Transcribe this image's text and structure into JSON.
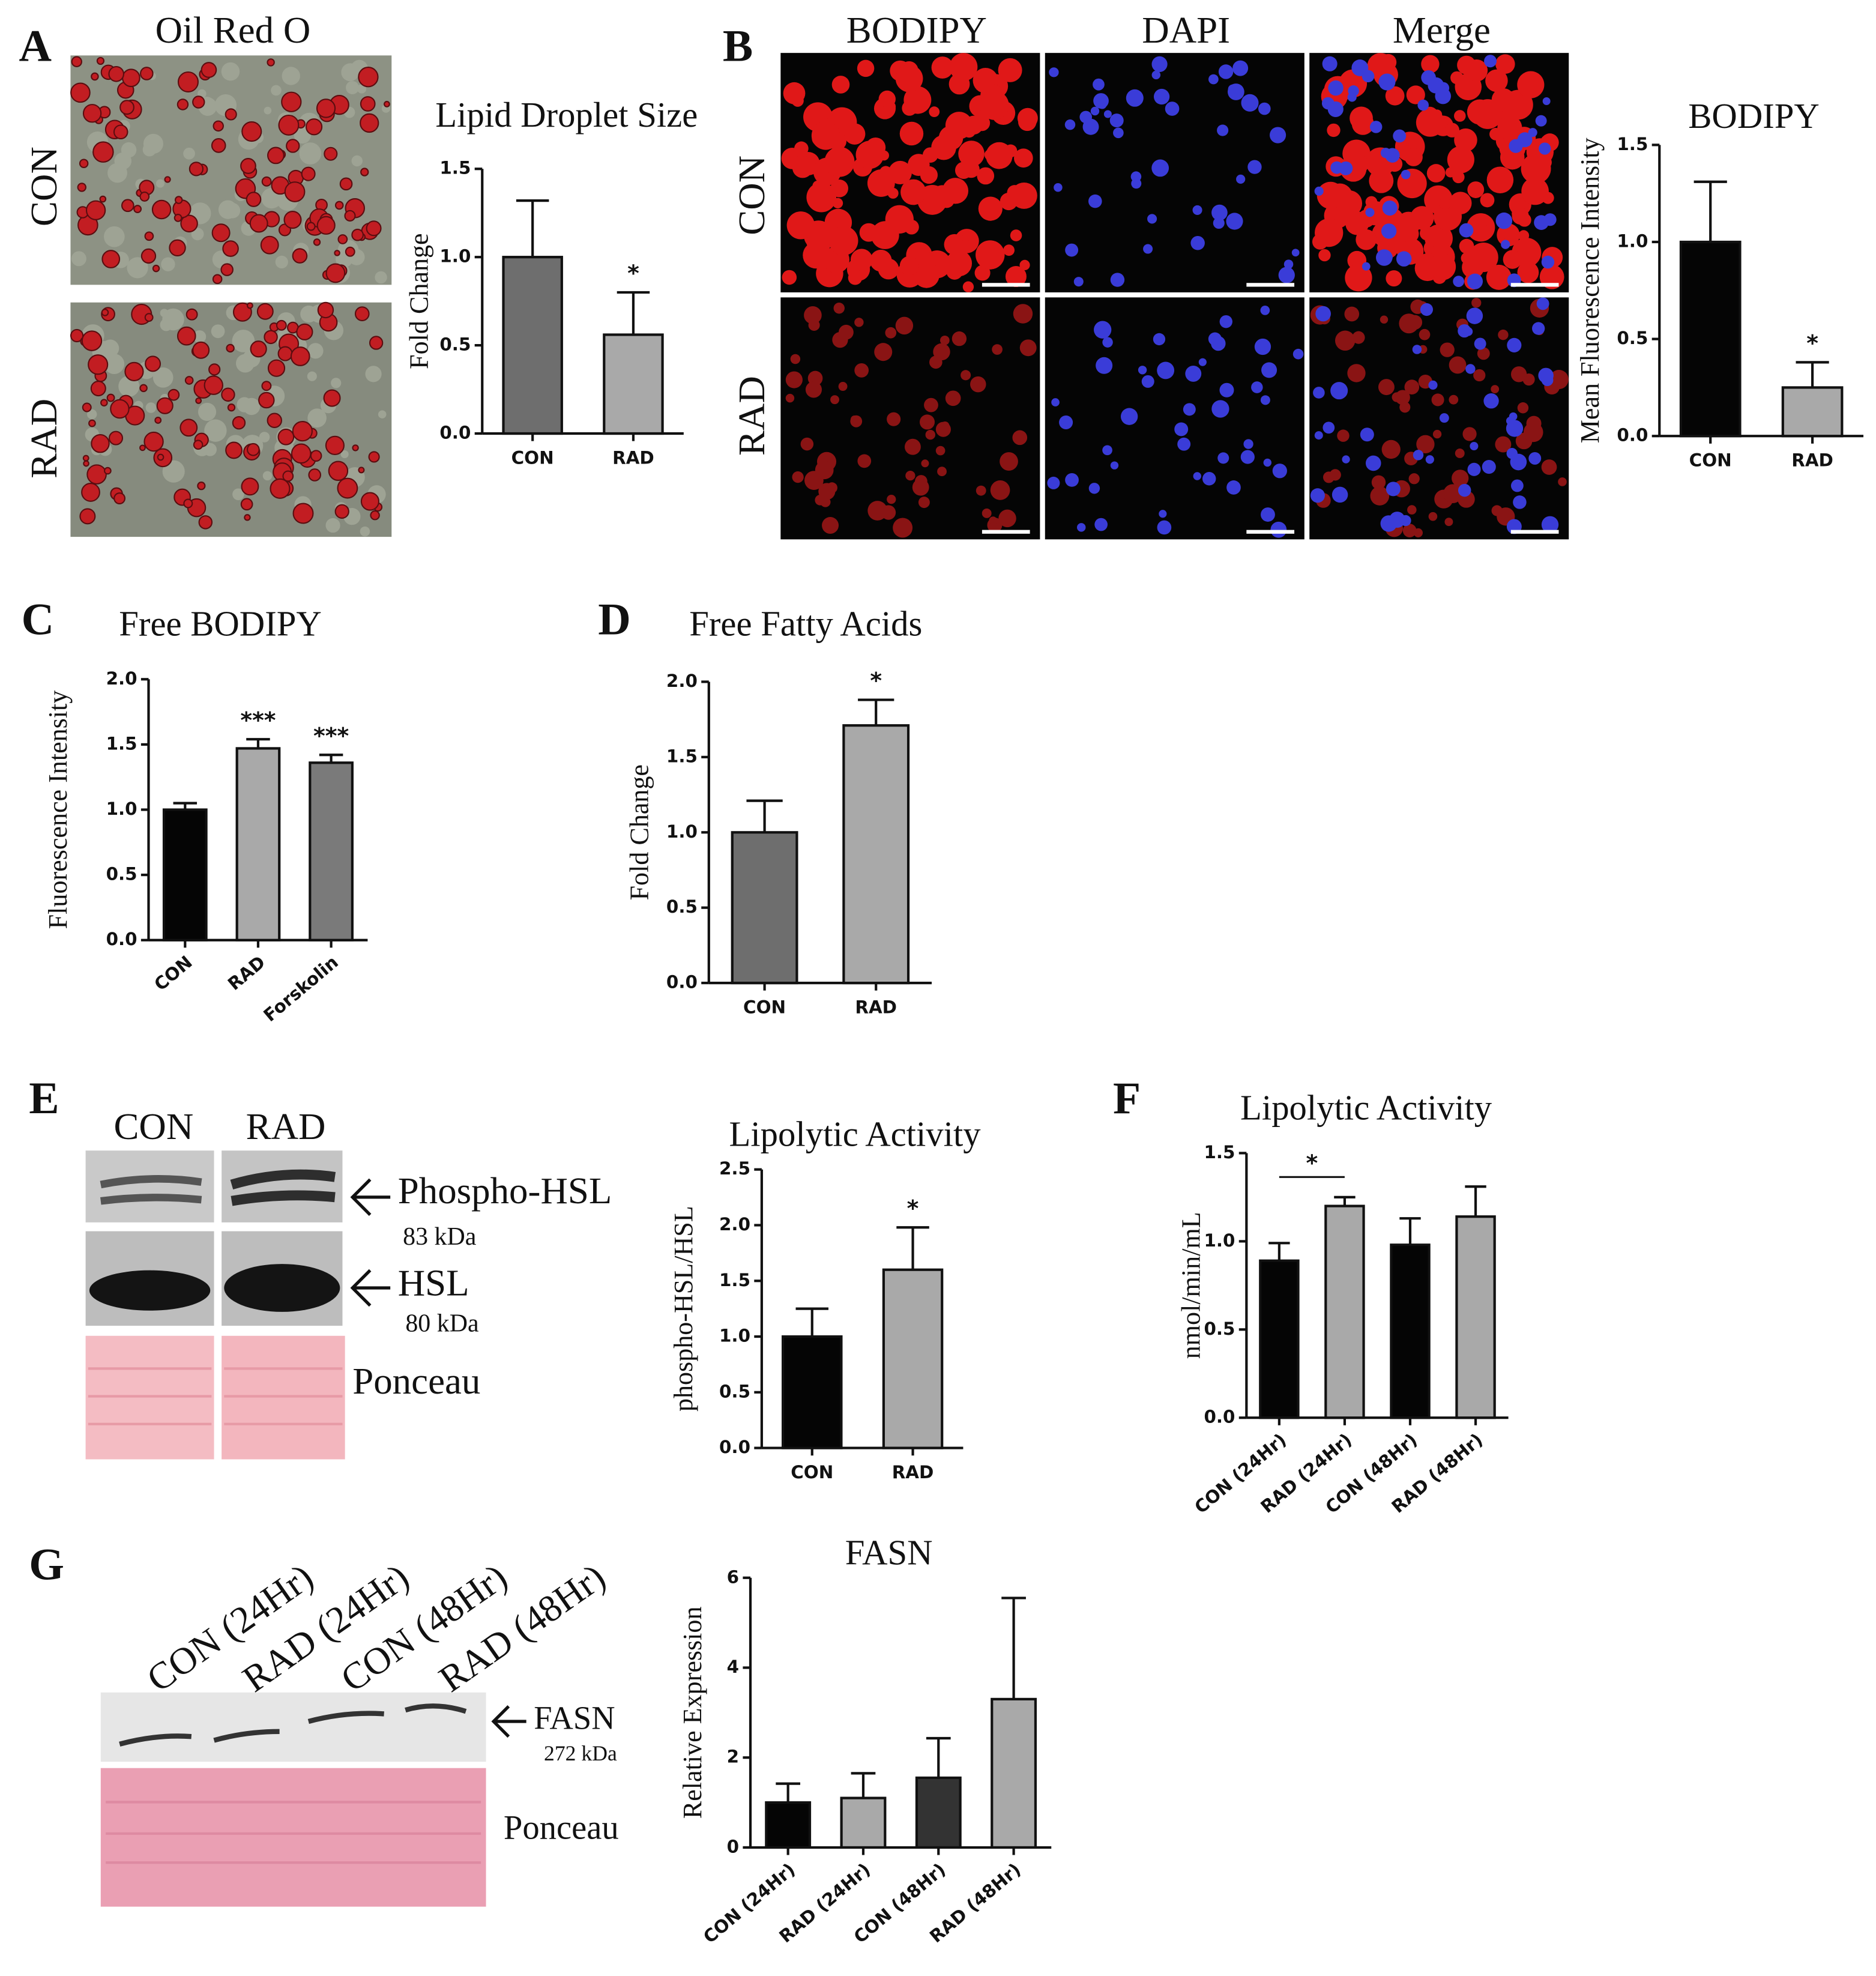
{
  "panels": {
    "A": {
      "letter": "A",
      "title": "Oil Red O",
      "rows": [
        "CON",
        "RAD"
      ]
    },
    "B": {
      "letter": "B",
      "columns": [
        "BODIPY",
        "DAPI",
        "Merge"
      ],
      "rows": [
        "CON",
        "RAD"
      ]
    },
    "C": {
      "letter": "C"
    },
    "D": {
      "letter": "D"
    },
    "E": {
      "letter": "E",
      "lanes": [
        "CON",
        "RAD"
      ],
      "bands": [
        {
          "label": "Phospho-HSL",
          "size": "83 kDa"
        },
        {
          "label": "HSL",
          "size": "80 kDa"
        }
      ],
      "stain": "Ponceau"
    },
    "F": {
      "letter": "F"
    },
    "G": {
      "letter": "G",
      "lanes": [
        "CON (24Hr)",
        "RAD (24Hr)",
        "CON (48Hr)",
        "RAD (48Hr)"
      ],
      "band": {
        "label": "FASN",
        "size": "272 kDa"
      },
      "stain": "Ponceau"
    }
  },
  "chart_data": [
    {
      "type": "bar",
      "title": "Lipid Droplet Size",
      "y_label": "Fold Change",
      "categories": [
        "CON",
        "RAD"
      ],
      "values": [
        1.0,
        0.56
      ],
      "errors": [
        0.32,
        0.24
      ],
      "colors": [
        "#6e6e6e",
        "#a9a9a9"
      ],
      "ylim": [
        0,
        1.5
      ],
      "yticks": [
        {
          "value": 0,
          "label": "0.0"
        },
        0.5,
        {
          "value": 1,
          "label": "1.0"
        },
        1.5
      ],
      "annotations": [
        {
          "text": "*",
          "category": "RAD"
        }
      ]
    },
    {
      "type": "bar",
      "title": "BODIPY",
      "y_label": "Mean Fluorescence Intensity",
      "categories": [
        "CON",
        "RAD"
      ],
      "values": [
        1.0,
        0.25
      ],
      "errors": [
        0.31,
        0.13
      ],
      "colors": [
        "#050505",
        "#a9a9a9"
      ],
      "ylim": [
        0,
        1.5
      ],
      "yticks": [
        {
          "value": 0,
          "label": "0.0"
        },
        0.5,
        {
          "value": 1,
          "label": "1.0"
        },
        1.5
      ],
      "annotations": [
        {
          "text": "*",
          "category": "RAD"
        }
      ]
    },
    {
      "type": "bar",
      "title": "Free BODIPY",
      "y_label": "Fluorescence Intensity",
      "categories": [
        "CON",
        "RAD",
        "Forskolin"
      ],
      "values": [
        1.0,
        1.47,
        1.36
      ],
      "errors": [
        0.05,
        0.07,
        0.06
      ],
      "colors": [
        "#050505",
        "#a9a9a9",
        "#7a7a7a"
      ],
      "ylim": [
        0,
        2
      ],
      "yticks": [
        {
          "value": 0,
          "label": "0.0"
        },
        0.5,
        {
          "value": 1,
          "label": "1.0"
        },
        1.5,
        {
          "value": 2,
          "label": "2.0"
        }
      ],
      "annotations": [
        {
          "text": "***",
          "category": "RAD"
        },
        {
          "text": "***",
          "category": "Forskolin"
        }
      ]
    },
    {
      "type": "bar",
      "title": "Free Fatty Acids",
      "y_label": "Fold Change",
      "categories": [
        "CON",
        "RAD"
      ],
      "values": [
        1.0,
        1.71
      ],
      "errors": [
        0.21,
        0.17
      ],
      "colors": [
        "#6e6e6e",
        "#a9a9a9"
      ],
      "ylim": [
        0,
        2
      ],
      "yticks": [
        {
          "value": 0,
          "label": "0.0"
        },
        0.5,
        {
          "value": 1,
          "label": "1.0"
        },
        1.5,
        {
          "value": 2,
          "label": "2.0"
        }
      ],
      "annotations": [
        {
          "text": "*",
          "category": "RAD"
        }
      ]
    },
    {
      "type": "bar",
      "title": "Lipolytic Activity",
      "y_label": "phospho-HSL/HSL",
      "categories": [
        "CON",
        "RAD"
      ],
      "values": [
        1.0,
        1.6
      ],
      "errors": [
        0.25,
        0.38
      ],
      "colors": [
        "#050505",
        "#a9a9a9"
      ],
      "ylim": [
        0,
        2.5
      ],
      "yticks": [
        {
          "value": 0,
          "label": "0.0"
        },
        0.5,
        {
          "value": 1,
          "label": "1.0"
        },
        1.5,
        {
          "value": 2,
          "label": "2.0"
        },
        2.5
      ],
      "annotations": [
        {
          "text": "*",
          "category": "RAD"
        }
      ]
    },
    {
      "type": "bar",
      "title": "Lipolytic Activity",
      "y_label": "nmol/min/mL",
      "categories": [
        "CON (24Hr)",
        "RAD (24Hr)",
        "CON (48Hr)",
        "RAD (48Hr)"
      ],
      "values": [
        0.89,
        1.2,
        0.98,
        1.14
      ],
      "errors": [
        0.1,
        0.05,
        0.15,
        0.17
      ],
      "colors": [
        "#050505",
        "#a9a9a9",
        "#050505",
        "#a9a9a9"
      ],
      "ylim": [
        0,
        1.5
      ],
      "yticks": [
        {
          "value": 0,
          "label": "0.0"
        },
        0.5,
        {
          "value": 1,
          "label": "1.0"
        },
        1.5
      ],
      "annotations": [
        {
          "text": "*",
          "between": [
            "CON (24Hr)",
            "RAD (24Hr)"
          ]
        }
      ]
    },
    {
      "type": "bar",
      "title": "FASN",
      "y_label": "Relative Expression",
      "categories": [
        "CON (24Hr)",
        "RAD (24Hr)",
        "CON (48Hr)",
        "RAD (48Hr)"
      ],
      "values": [
        1.0,
        1.1,
        1.55,
        3.3
      ],
      "errors": [
        0.42,
        0.55,
        0.88,
        2.25
      ],
      "colors": [
        "#050505",
        "#a9a9a9",
        "#333333",
        "#a9a9a9"
      ],
      "ylim": [
        0,
        6
      ],
      "yticks": [
        0,
        2,
        4,
        6
      ]
    }
  ]
}
